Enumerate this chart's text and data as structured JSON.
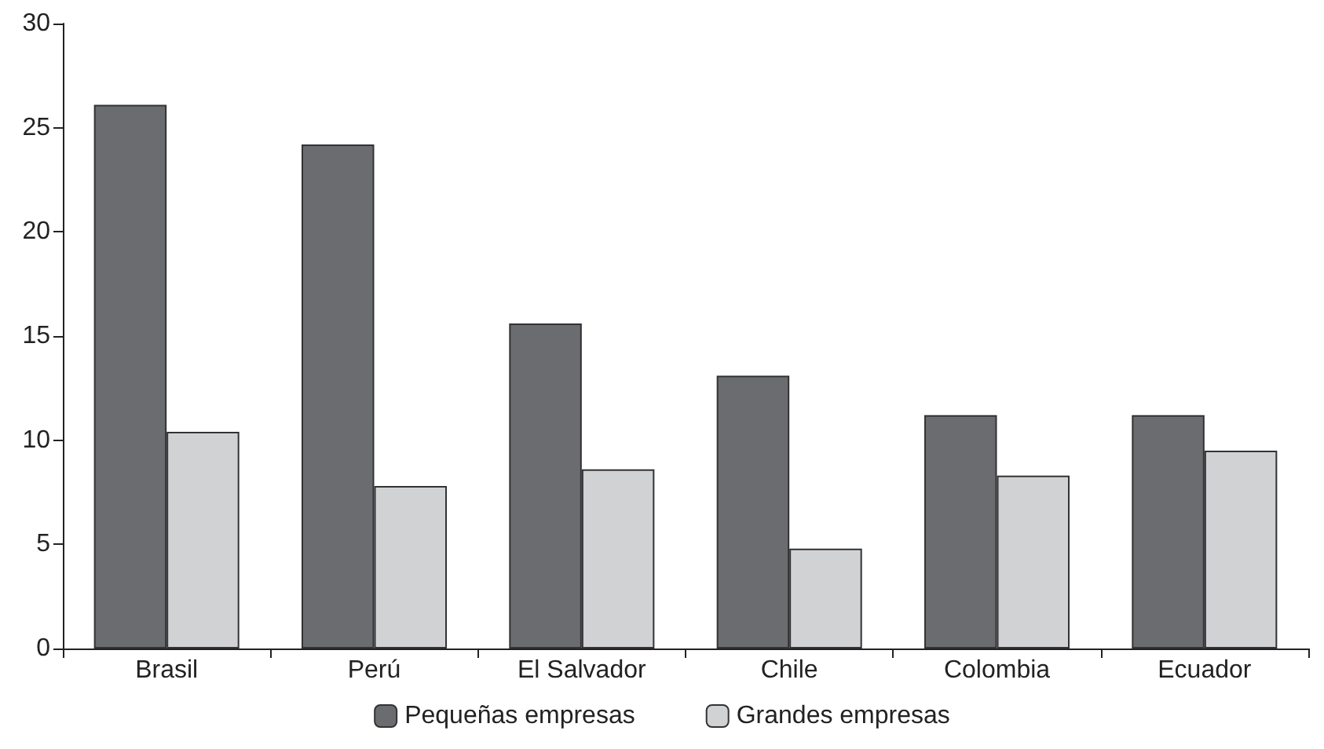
{
  "chart_data": {
    "type": "bar",
    "categories": [
      "Brasil",
      "Perú",
      "El Salvador",
      "Chile",
      "Colombia",
      "Ecuador"
    ],
    "series": [
      {
        "name": "Pequeñas empresas",
        "color": "#6b6c70",
        "values": [
          26.1,
          24.2,
          15.6,
          13.1,
          11.2,
          11.2
        ]
      },
      {
        "name": "Grandes empresas",
        "color": "#d1d2d4",
        "values": [
          10.4,
          7.8,
          8.6,
          4.8,
          8.3,
          9.5
        ]
      }
    ],
    "ylim": [
      0,
      30
    ],
    "yticks": [
      0,
      5,
      10,
      15,
      20,
      25,
      30
    ],
    "grid": false,
    "legend": "bottom"
  }
}
